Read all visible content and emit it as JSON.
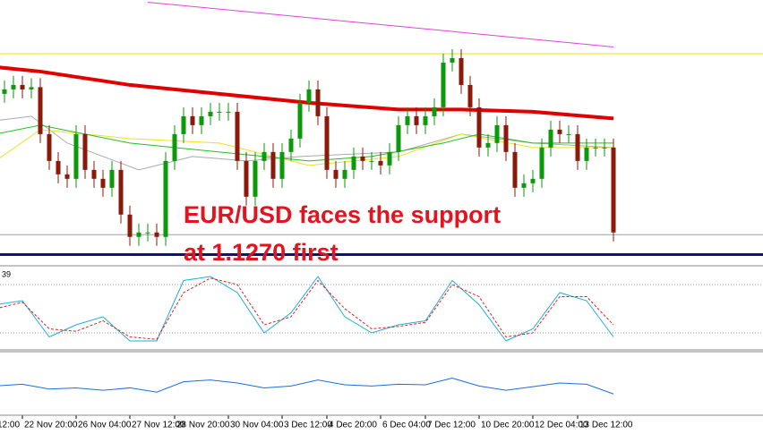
{
  "chart_data": {
    "type": "candlestick",
    "annotation": [
      "EUR/USD faces the support",
      "at 1.1270 first"
    ],
    "colors": {
      "up": "#0a9a0a",
      "down": "#8b1a0a"
    },
    "ylim": [
      1.1245,
      1.1482
    ],
    "categories": [
      "12:00",
      null,
      null,
      "22 Nov 20:00",
      null,
      null,
      null,
      null,
      null,
      "26 Nov 04:00",
      null,
      null,
      null,
      null,
      null,
      "27 Nov 12:00",
      null,
      null,
      null,
      null,
      "28 Nov 20:00",
      null,
      null,
      null,
      null,
      null,
      "30 Nov 04:00",
      null,
      null,
      null,
      null,
      null,
      "3 Dec 12:00",
      null,
      null,
      null,
      null,
      "4 Dec 20:00",
      null,
      null,
      null,
      null,
      null,
      "6 Dec 04:00",
      null,
      null,
      null,
      null,
      "7 Dec 12:00",
      null,
      null,
      null,
      null,
      null,
      "10 Dec 20:00",
      null,
      null,
      null,
      null,
      null,
      "12 Dec 04:00",
      null,
      null,
      null,
      null,
      "13 Dec 12:00",
      null,
      null,
      null,
      null
    ],
    "open": [
      1.1394,
      1.1398,
      1.1402,
      1.1406,
      1.1402,
      1.1404,
      1.1362,
      1.1338,
      1.1326,
      1.1322,
      1.1362,
      1.133,
      1.1322,
      1.1314,
      1.133,
      1.129,
      1.127,
      1.1274,
      1.1274,
      1.127,
      1.1338,
      1.1362,
      1.1378,
      1.137,
      1.1378,
      1.1382,
      1.1382,
      1.1382,
      1.1338,
      1.1306,
      1.1338,
      1.1346,
      1.1322,
      1.1346,
      1.1358,
      1.139,
      1.1402,
      1.1378,
      1.133,
      1.1322,
      1.133,
      1.1342,
      1.1338,
      1.1338,
      1.1334,
      1.1346,
      1.137,
      1.1378,
      1.137,
      1.1378,
      1.1386,
      1.1426,
      1.143,
      1.1406,
      1.1386,
      1.135,
      1.1354,
      1.137,
      1.1346,
      1.1314,
      1.1318,
      1.1322,
      1.135,
      1.1366,
      1.1362,
      1.1362,
      1.1338,
      1.135,
      1.135,
      1.135
    ],
    "high": [
      1.1406,
      1.141,
      1.1414,
      1.1414,
      1.1412,
      1.1412,
      1.137,
      1.1346,
      1.1334,
      1.137,
      1.137,
      1.1338,
      1.133,
      1.1338,
      1.1338,
      1.1298,
      1.1282,
      1.1282,
      1.1282,
      1.1346,
      1.137,
      1.1386,
      1.1386,
      1.1386,
      1.139,
      1.139,
      1.139,
      1.139,
      1.1346,
      1.1346,
      1.1354,
      1.1354,
      1.1354,
      1.1366,
      1.1398,
      1.141,
      1.141,
      1.1386,
      1.1338,
      1.1338,
      1.135,
      1.135,
      1.1346,
      1.1346,
      1.1354,
      1.1378,
      1.1386,
      1.1386,
      1.1386,
      1.1394,
      1.1434,
      1.1438,
      1.1438,
      1.1414,
      1.1394,
      1.1362,
      1.1378,
      1.1378,
      1.1354,
      1.1326,
      1.133,
      1.1358,
      1.1374,
      1.1374,
      1.137,
      1.137,
      1.1358,
      1.1358,
      1.1358,
      1.1358
    ],
    "low": [
      1.1386,
      1.139,
      1.1394,
      1.1394,
      1.1394,
      1.1354,
      1.133,
      1.1318,
      1.1314,
      1.1314,
      1.1322,
      1.1314,
      1.1306,
      1.1306,
      1.1282,
      1.1262,
      1.1262,
      1.1266,
      1.1262,
      1.1262,
      1.133,
      1.1354,
      1.1362,
      1.1362,
      1.137,
      1.1374,
      1.1374,
      1.133,
      1.1298,
      1.1298,
      1.133,
      1.1314,
      1.1314,
      1.1338,
      1.135,
      1.1382,
      1.137,
      1.1322,
      1.1314,
      1.1314,
      1.1322,
      1.133,
      1.133,
      1.1326,
      1.1326,
      1.1338,
      1.1362,
      1.1362,
      1.1362,
      1.137,
      1.1378,
      1.1418,
      1.1398,
      1.1378,
      1.1342,
      1.1342,
      1.1346,
      1.1338,
      1.1306,
      1.1306,
      1.131,
      1.1314,
      1.1342,
      1.1354,
      1.1354,
      1.133,
      1.133,
      1.1342,
      1.1342,
      1.1266
    ],
    "close": [
      1.1398,
      1.1402,
      1.1406,
      1.1402,
      1.1404,
      1.1362,
      1.1338,
      1.1326,
      1.1322,
      1.1362,
      1.133,
      1.1322,
      1.1314,
      1.133,
      1.129,
      1.127,
      1.1274,
      1.1274,
      1.127,
      1.1338,
      1.1362,
      1.1378,
      1.137,
      1.1378,
      1.1382,
      1.1382,
      1.1382,
      1.1338,
      1.1306,
      1.1338,
      1.1346,
      1.1322,
      1.1346,
      1.1358,
      1.139,
      1.1402,
      1.1378,
      1.133,
      1.1322,
      1.133,
      1.1342,
      1.1338,
      1.1338,
      1.1334,
      1.1346,
      1.137,
      1.1378,
      1.137,
      1.1378,
      1.1386,
      1.1426,
      1.143,
      1.1406,
      1.1386,
      1.135,
      1.1354,
      1.137,
      1.1346,
      1.1314,
      1.1318,
      1.1322,
      1.135,
      1.1366,
      1.1362,
      1.1362,
      1.1338,
      1.135,
      1.135,
      1.135,
      1.1274
    ],
    "lines": [
      {
        "color": "#e040e0",
        "width": 1,
        "x": [
          17,
          69
        ],
        "values": [
          1.148,
          1.144
        ]
      },
      {
        "color": "#aaaaaa",
        "width": 1,
        "x": [
          0,
          4,
          8,
          16,
          22,
          28,
          34,
          45,
          52,
          60,
          69
        ],
        "values": [
          1.1374,
          1.1378,
          1.1354,
          1.133,
          1.1342,
          1.1338,
          1.1342,
          1.1346,
          1.1362,
          1.1354,
          1.135
        ]
      },
      {
        "color": "#f0e020",
        "width": 1,
        "x": [
          0,
          5,
          15,
          25,
          35,
          45,
          52,
          60,
          69
        ],
        "values": [
          1.1338,
          1.1366,
          1.1358,
          1.1354,
          1.1334,
          1.1342,
          1.1362,
          1.135,
          1.135
        ]
      },
      {
        "color": "#22c022",
        "width": 1,
        "x": [
          0,
          5,
          15,
          25,
          35,
          42,
          50,
          54,
          60,
          69
        ],
        "values": [
          1.1362,
          1.137,
          1.1354,
          1.1346,
          1.1338,
          1.1342,
          1.1354,
          1.1362,
          1.1354,
          1.1354
        ]
      },
      {
        "color": "#e00000",
        "width": 4,
        "x": [
          0,
          5,
          15,
          25,
          35,
          45,
          52,
          60,
          69
        ],
        "values": [
          1.1422,
          1.1418,
          1.1406,
          1.1398,
          1.139,
          1.1384,
          1.1384,
          1.1382,
          1.1376
        ]
      }
    ],
    "hlines": [
      {
        "color": "#e8e000",
        "value": 1.1434
      },
      {
        "color": "#a0a0a0",
        "value": 1.1272
      }
    ],
    "stochastic": {
      "label": "39",
      "ylim": [
        0,
        100
      ],
      "levels": [
        20,
        80
      ],
      "k": {
        "color": "#1ab0d8",
        "x": [
          0,
          3,
          6,
          9,
          12,
          15,
          18,
          21,
          24,
          27,
          30,
          33,
          36,
          39,
          42,
          45,
          48,
          51,
          54,
          57,
          60,
          63,
          66,
          69
        ],
        "values": [
          55,
          60,
          15,
          30,
          40,
          10,
          10,
          85,
          90,
          70,
          20,
          45,
          90,
          40,
          20,
          30,
          35,
          85,
          55,
          10,
          25,
          70,
          60,
          15
        ]
      },
      "d": {
        "color": "#e02020",
        "x": [
          0,
          3,
          6,
          9,
          12,
          15,
          18,
          21,
          24,
          27,
          30,
          33,
          36,
          39,
          42,
          45,
          48,
          51,
          54,
          57,
          60,
          63,
          66,
          69
        ],
        "values": [
          50,
          58,
          25,
          22,
          35,
          15,
          12,
          70,
          88,
          80,
          30,
          40,
          85,
          50,
          25,
          28,
          33,
          80,
          65,
          15,
          20,
          65,
          65,
          30
        ]
      }
    },
    "lower": {
      "ylim": [
        0,
        100
      ],
      "line": {
        "color": "#1a6ee0",
        "x": [
          0,
          3,
          6,
          9,
          12,
          15,
          18,
          21,
          24,
          27,
          30,
          33,
          36,
          39,
          42,
          45,
          48,
          51,
          54,
          57,
          60,
          63,
          66,
          69
        ],
        "values": [
          45,
          48,
          40,
          42,
          38,
          42,
          35,
          52,
          55,
          50,
          42,
          45,
          55,
          47,
          45,
          48,
          47,
          58,
          45,
          38,
          44,
          50,
          48,
          32
        ]
      }
    }
  }
}
